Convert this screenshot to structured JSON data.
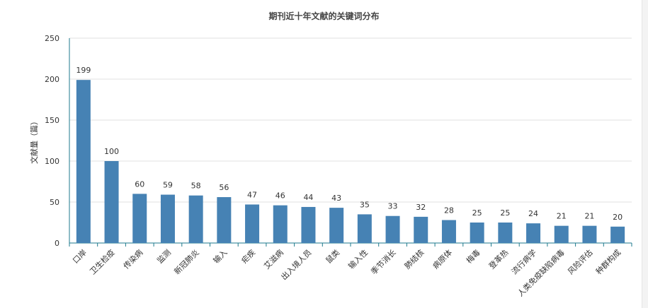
{
  "chart_data": {
    "type": "bar",
    "title": "期刊近十年文献的关键词分布",
    "xlabel": "",
    "ylabel": "文献量（篇）",
    "ylim": [
      0,
      250
    ],
    "yticks": [
      0,
      50,
      100,
      150,
      200,
      250
    ],
    "grid": true,
    "legend": "none",
    "categories": [
      "口岸",
      "卫生检疫",
      "传染病",
      "监测",
      "新冠肺炎",
      "输入",
      "疟疾",
      "艾滋病",
      "出入境人员",
      "鼠类",
      "输入性",
      "季节消长",
      "肺结核",
      "病原体",
      "梅毒",
      "登革热",
      "流行病学",
      "人类免疫缺陷病毒",
      "风险评估",
      "种群构成"
    ],
    "values": [
      199,
      100,
      60,
      59,
      58,
      56,
      47,
      46,
      44,
      43,
      35,
      33,
      32,
      28,
      25,
      25,
      24,
      21,
      21,
      20
    ],
    "bar_color": "#4682b4",
    "axis_color": "#1e7a8c",
    "grid_color": "#e0e0e0"
  }
}
